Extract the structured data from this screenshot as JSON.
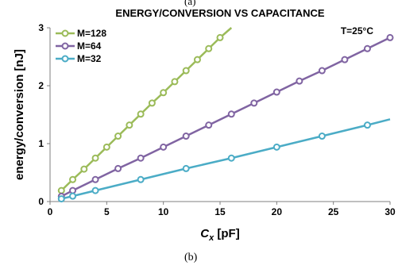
{
  "caption_top": "(a)",
  "caption_bottom": "(b)",
  "chart_data": {
    "type": "line",
    "title": "ENERGY/CONVERSION VS CAPACITANCE",
    "annotation": "T=25°C",
    "xlabel_main": "C",
    "xlabel_sub": "x",
    "xlabel_unit": " [pF]",
    "ylabel": "energy/conversion [nJ]",
    "xlim": [
      0,
      30
    ],
    "ylim": [
      0,
      3
    ],
    "xticks": [
      0,
      5,
      10,
      15,
      20,
      25,
      30
    ],
    "yticks": [
      0,
      1,
      2,
      3
    ],
    "grid": false,
    "legend_position": "top-left",
    "series": [
      {
        "name": "M=128",
        "color": "#9BBB59",
        "x": [
          1,
          2,
          3,
          4,
          5,
          6,
          7,
          8,
          9,
          10,
          11,
          12,
          13,
          14,
          15
        ],
        "y": [
          0.19,
          0.38,
          0.56,
          0.75,
          0.94,
          1.13,
          1.32,
          1.51,
          1.7,
          1.88,
          2.07,
          2.26,
          2.45,
          2.64,
          2.83
        ],
        "line_end": [
          16,
          3.0
        ]
      },
      {
        "name": "M=64",
        "color": "#8064A2",
        "x": [
          1,
          2,
          4,
          6,
          8,
          10,
          12,
          14,
          16,
          18,
          20,
          22,
          24,
          26,
          28,
          30
        ],
        "y": [
          0.09,
          0.19,
          0.38,
          0.57,
          0.75,
          0.94,
          1.13,
          1.32,
          1.51,
          1.7,
          1.89,
          2.08,
          2.26,
          2.45,
          2.64,
          2.83
        ]
      },
      {
        "name": "M=32",
        "color": "#4BACC6",
        "x": [
          1,
          2,
          4,
          8,
          12,
          16,
          20,
          24,
          28
        ],
        "y": [
          0.047,
          0.094,
          0.19,
          0.38,
          0.57,
          0.75,
          0.94,
          1.13,
          1.32
        ],
        "line_end": [
          30,
          1.42
        ]
      }
    ]
  }
}
